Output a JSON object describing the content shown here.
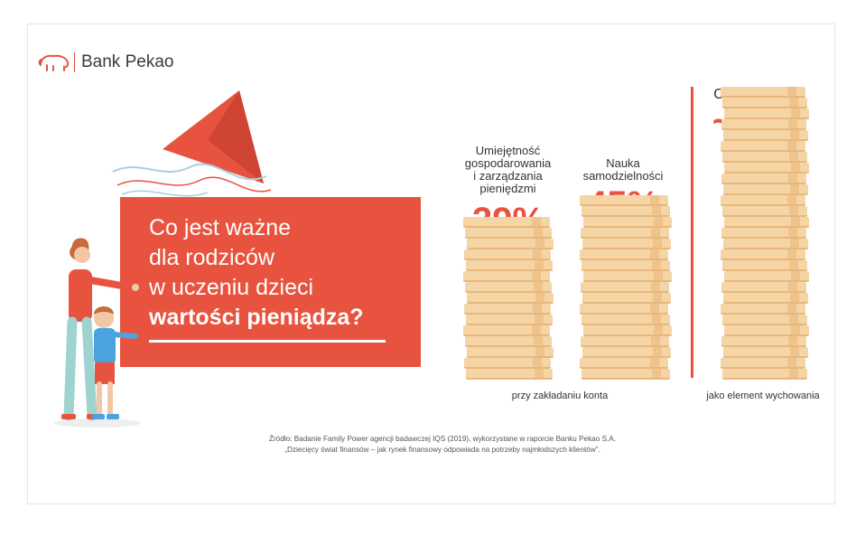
{
  "brand": {
    "name": "Bank Pekao",
    "logo_icon": "bison-icon",
    "color": "#e8533f"
  },
  "headline": {
    "lines": [
      "Co jest ważne",
      "dla rodziców",
      "w uczeniu dzieci"
    ],
    "bold_line": "wartości pieniądza?"
  },
  "stats": [
    {
      "label_lines": [
        "Umiejętność",
        "gospodarowania",
        "i zarządzania",
        "pieniędzmi"
      ],
      "value": "39%",
      "share": 0.39
    },
    {
      "label_lines": [
        "Nauka",
        "samodzielności"
      ],
      "value": "45%",
      "share": 0.45
    },
    {
      "label_lines": [
        "Oszczędzanie"
      ],
      "value": "~70%",
      "share": 0.7
    }
  ],
  "captions": {
    "account": "przy zakładaniu konta",
    "upbringing": "jako element wychowania"
  },
  "source": {
    "line1": "Źródło: Badanie Family Power agencji badawczej IQS (2019), wykorzystane w raporcie Banku Pekao S.A.",
    "line2": "„Dziecięcy świat finansów – jak rynek finansowy odpowiada na potrzeby najmłodszych klientów”."
  },
  "colors": {
    "accent": "#e8533f",
    "coin": "#f5d4a6",
    "coin_edge": "#e9b77c"
  }
}
